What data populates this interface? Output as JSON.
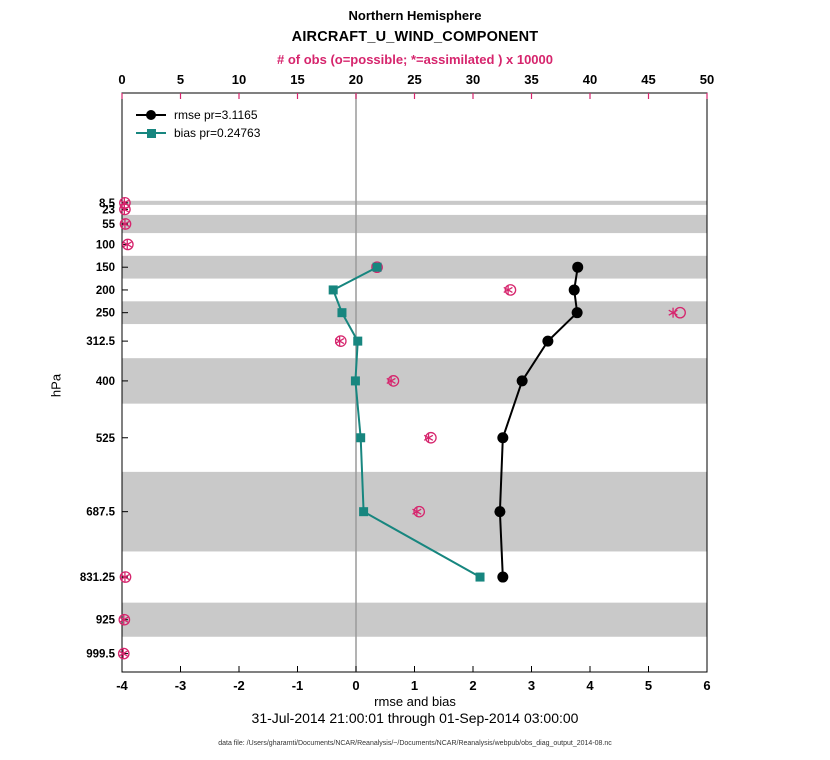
{
  "colors": {
    "pink": "#d6256d",
    "teal": "#17867f",
    "black": "#000000",
    "band_gray": "#c9c9c9",
    "zero_line": "#9a9a9a"
  },
  "header": {
    "title_line1": "Northern Hemisphere",
    "title_line2": "AIRCRAFT_U_WIND_COMPONENT",
    "obs_axis_title": "# of obs (o=possible; *=assimilated ) x 10000"
  },
  "legend": {
    "rmse_label": "rmse pr=3.1165",
    "bias_label": "bias pr=0.24763"
  },
  "axes": {
    "ylabel": "hPa",
    "xlabel": "rmse and bias",
    "x_ticks": [
      -4,
      -3,
      -2,
      -1,
      0,
      1,
      2,
      3,
      4,
      5,
      6
    ],
    "obs_ticks": [
      0,
      5,
      10,
      15,
      20,
      25,
      30,
      35,
      40,
      45,
      50
    ],
    "y_tick_levels": [
      8.5,
      23,
      55,
      100,
      150,
      200,
      250,
      312.5,
      400,
      525,
      687.5,
      831.25,
      925,
      999.5
    ]
  },
  "caption": "31-Jul-2014 21:00:01 through 01-Sep-2014 03:00:00",
  "footer": "data file: /Users/gharamti/Documents/NCAR/Reanalysis/~/Documents/NCAR/Reanalysis/webpub/obs_diag_output_2014-08.nc",
  "chart_data": {
    "type": "line",
    "title": "Northern Hemisphere",
    "subtitle": "AIRCRAFT_U_WIND_COMPONENT",
    "xlabel": "rmse and bias",
    "ylabel": "hPa",
    "x_range": [
      -4,
      6
    ],
    "obs_axis_label": "# of obs (o=possible; *=assimilated ) x 10000",
    "obs_axis_range": [
      0,
      50
    ],
    "obs_axis_scale": 10000,
    "pressure_axis_range_hpa": [
      -233,
      1040
    ],
    "grid": "zero-line-only",
    "legend_position": "top-left-inside",
    "levels_hpa": [
      150,
      200,
      250,
      312.5,
      400,
      525,
      687.5,
      831.25
    ],
    "series": [
      {
        "name": "rmse",
        "legend": "rmse pr=3.1165",
        "color": "#000000",
        "marker": "filled-circle",
        "values": [
          3.79,
          3.73,
          3.78,
          3.28,
          2.84,
          2.51,
          2.46,
          2.51
        ]
      },
      {
        "name": "bias",
        "legend": "bias pr=0.24763",
        "color": "#17867f",
        "marker": "filled-square",
        "values": [
          0.36,
          -0.39,
          -0.24,
          0.03,
          -0.01,
          0.08,
          0.13,
          2.12
        ]
      }
    ],
    "obs_counts_x10000": {
      "levels_hpa": [
        8.5,
        23,
        55,
        100,
        150,
        200,
        250,
        312.5,
        400,
        525,
        687.5,
        831.25,
        925,
        999.5
      ],
      "possible": [
        0.25,
        0.25,
        0.3,
        0.5,
        21.8,
        33.2,
        47.7,
        18.7,
        23.2,
        26.4,
        25.4,
        0.3,
        0.2,
        0.15
      ],
      "assimilated": [
        0.2,
        0.2,
        0.25,
        0.45,
        21.7,
        33.0,
        47.1,
        18.6,
        23.0,
        26.2,
        25.2,
        0.25,
        0.15,
        0.1
      ]
    },
    "shaded_bands_hpa": [
      [
        4,
        13
      ],
      [
        35,
        75
      ],
      [
        125,
        175
      ],
      [
        225,
        275
      ],
      [
        350,
        450
      ],
      [
        600,
        775
      ],
      [
        887.5,
        962.5
      ]
    ]
  }
}
